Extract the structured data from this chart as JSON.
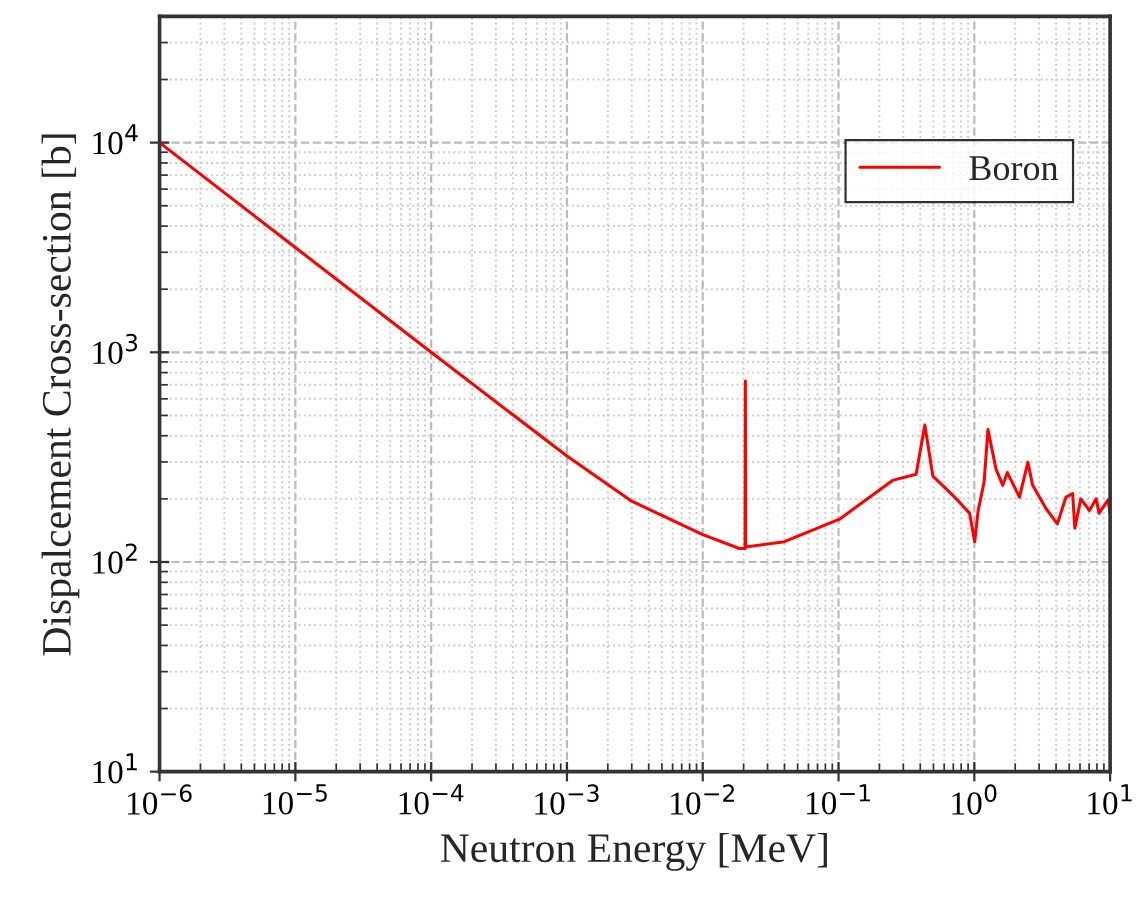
{
  "chart_data": {
    "type": "line",
    "xlabel": "Neutron Energy [MeV]",
    "ylabel": "Dispalcement Cross-section [b]",
    "log": "xy",
    "grid": true,
    "legend": "top right",
    "marker": "none",
    "line_style": "solid",
    "xlim": [
      1e-06,
      10
    ],
    "ylim": [
      10,
      40000
    ],
    "xticks": [
      {
        "value": 1e-06,
        "label": "10$^{−6}$"
      },
      {
        "value": 1e-05,
        "label": "10$^{−5}$"
      },
      {
        "value": 0.0001,
        "label": "10$^{−4}$"
      },
      {
        "value": 0.001,
        "label": "10$^{−3}$"
      },
      {
        "value": 0.01,
        "label": "10$^{−2}$"
      },
      {
        "value": 0.1,
        "label": "10$^{−1}$"
      },
      {
        "value": 1,
        "label": "10$^{0}$"
      },
      {
        "value": 10,
        "label": "10$^{1}$"
      }
    ],
    "yticks": [
      {
        "value": 10,
        "label": "10$^{1}$"
      },
      {
        "value": 100,
        "label": "10$^{2}$"
      },
      {
        "value": 1000,
        "label": "10$^{3}$"
      },
      {
        "value": 10000,
        "label": "10$^{4}$"
      }
    ],
    "series": [
      {
        "name": "Boron",
        "color": "#ff0000",
        "x": [
          1e-06,
          1e-05,
          0.0001,
          0.001,
          0.003,
          0.01,
          0.0186,
          0.0205,
          0.0206,
          0.0207,
          0.04,
          0.1016,
          0.25,
          0.373,
          0.432,
          0.495,
          0.695,
          0.922,
          1.007,
          1.066,
          1.18,
          1.26,
          1.445,
          1.62,
          1.75,
          2.15,
          2.48,
          2.69,
          3.37,
          4.09,
          4.73,
          5.3,
          5.5,
          6.08,
          7.04,
          7.9,
          8.3,
          9.66,
          10
        ],
        "values": [
          10000,
          3160,
          1000,
          320,
          195,
          135,
          116,
          116,
          730,
          118,
          125,
          160,
          245,
          262,
          450,
          257,
          208,
          171,
          125,
          175,
          240,
          428,
          277,
          232,
          267,
          204,
          299,
          232,
          180,
          152,
          204,
          212,
          145,
          200,
          176,
          200,
          171,
          198,
          170
        ]
      }
    ]
  }
}
